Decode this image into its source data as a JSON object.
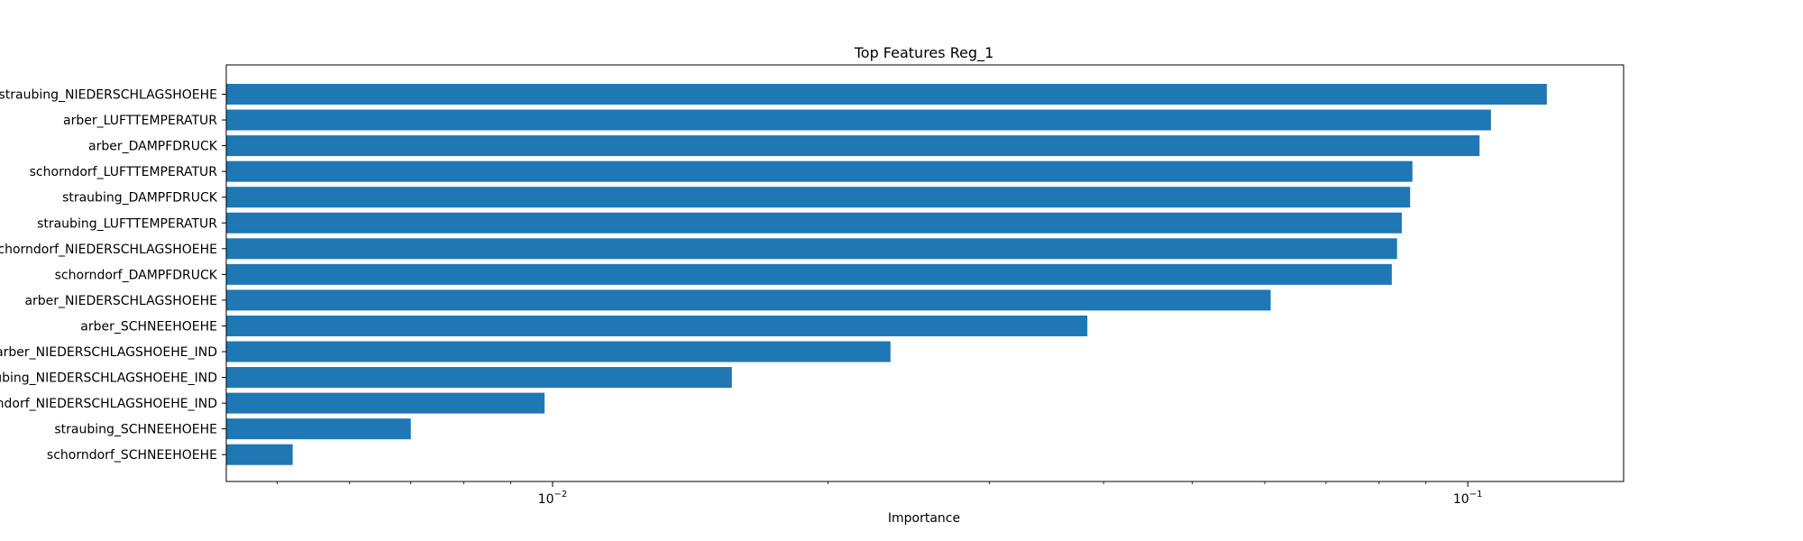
{
  "chart_data": {
    "type": "bar",
    "orientation": "horizontal",
    "title": "Top Features Reg_1",
    "xlabel": "Importance",
    "ylabel": "",
    "xscale": "log",
    "xlim": [
      0.0044,
      0.148
    ],
    "xticks": [
      {
        "value": 0.01,
        "base": "10",
        "exp": "−2"
      },
      {
        "value": 0.1,
        "base": "10",
        "exp": "−1"
      }
    ],
    "grid": false,
    "legend": "none",
    "bar_color": "#1f77b4",
    "categories": [
      "straubing_NIEDERSCHLAGSHOEHE",
      "arber_LUFTTEMPERATUR",
      "arber_DAMPFDRUCK",
      "schorndorf_LUFTTEMPERATUR",
      "straubing_DAMPFDRUCK",
      "straubing_LUFTTEMPERATUR",
      "schorndorf_NIEDERSCHLAGSHOEHE",
      "schorndorf_DAMPFDRUCK",
      "arber_NIEDERSCHLAGSHOEHE",
      "arber_SCHNEEHOEHE",
      "arber_NIEDERSCHLAGSHOEHE_IND",
      "straubing_NIEDERSCHLAGSHOEHE_IND",
      "schorndorf_NIEDERSCHLAGSHOEHE_IND",
      "straubing_SCHNEEHOEHE",
      "schorndorf_SCHNEEHOEHE"
    ],
    "values": [
      0.122,
      0.106,
      0.103,
      0.087,
      0.0865,
      0.0847,
      0.0837,
      0.0826,
      0.0609,
      0.0384,
      0.0234,
      0.0157,
      0.0098,
      0.007,
      0.0052
    ]
  }
}
